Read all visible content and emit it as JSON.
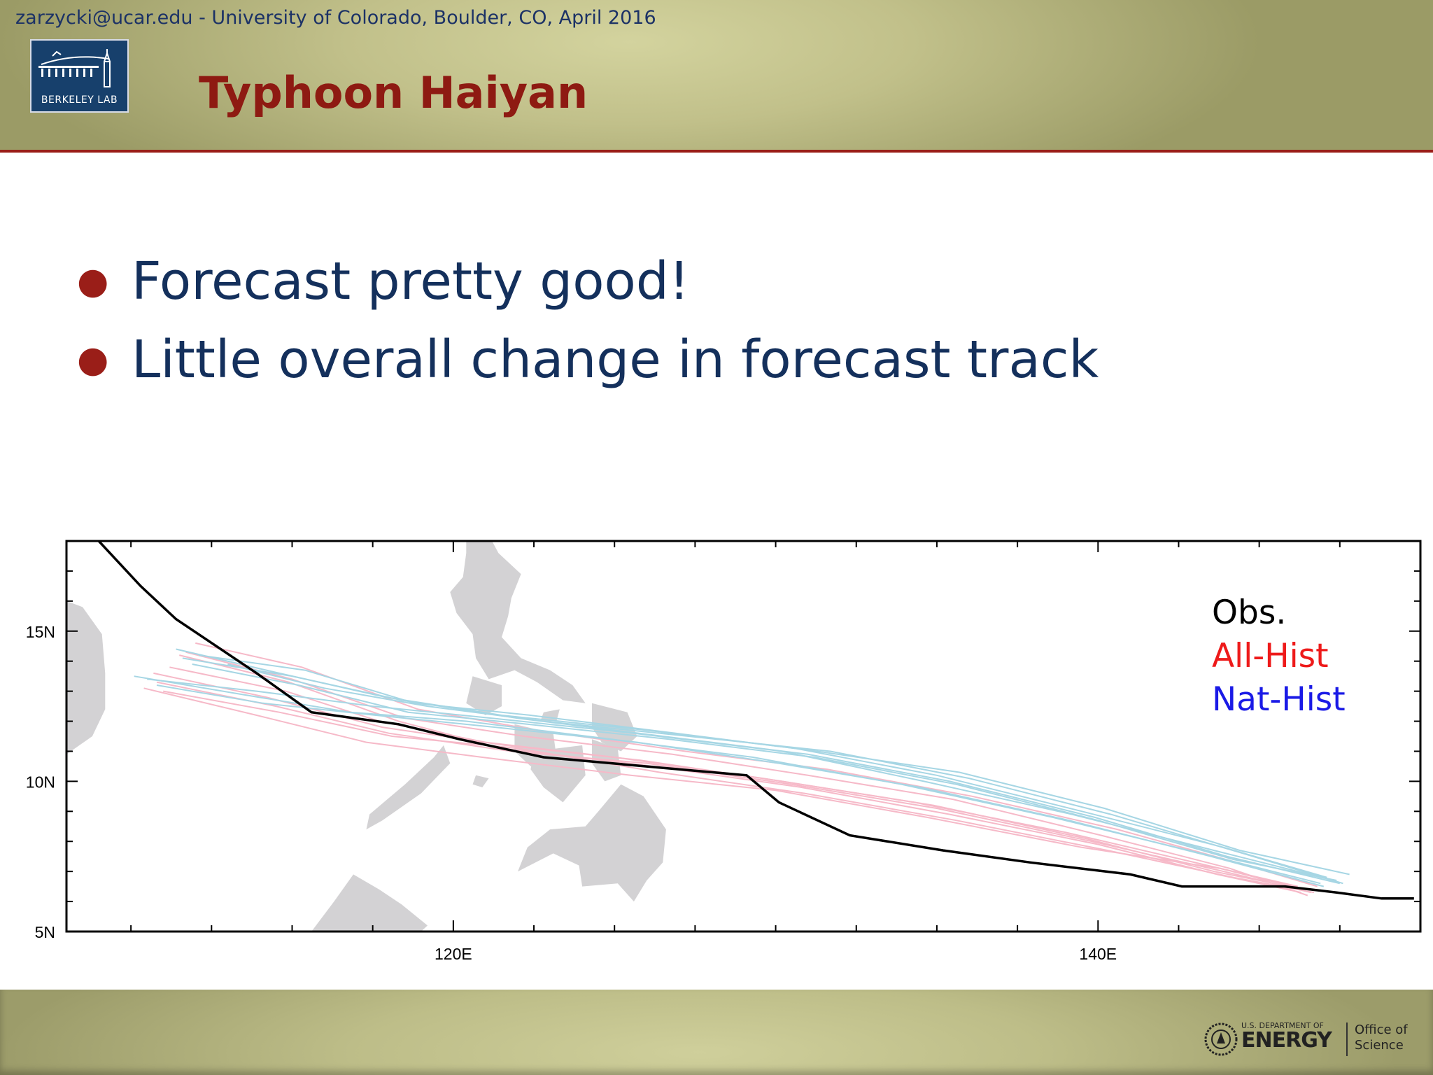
{
  "header": {
    "meta": "zarzycki@ucar.edu - University of Colorado, Boulder, CO, April 2016",
    "title": "Typhoon Haiyan",
    "logo_text": "BERKELEY LAB"
  },
  "bullets": [
    "Forecast pretty good!",
    "Little overall change in forecast track"
  ],
  "map": {
    "lon_range": [
      108,
      150
    ],
    "lat_range": [
      5,
      18
    ],
    "x_ticks": [
      {
        "lon": 120,
        "label": "120E"
      },
      {
        "lon": 140,
        "label": "140E"
      }
    ],
    "y_ticks": [
      {
        "lat": 15,
        "label": "15N"
      },
      {
        "lat": 10,
        "label": "10N"
      },
      {
        "lat": 5,
        "label": "5N"
      }
    ],
    "colors": {
      "land": "#d3d2d4",
      "obs": "#000000",
      "all_hist": "#f6b9c8",
      "nat_hist": "#a6d6e4"
    },
    "obs_track": [
      [
        109,
        18
      ],
      [
        110.3,
        16.5
      ],
      [
        111.4,
        15.4
      ],
      [
        113.9,
        13.6
      ],
      [
        115.6,
        12.3
      ],
      [
        118.3,
        11.9
      ],
      [
        120.2,
        11.4
      ],
      [
        122.8,
        10.8
      ],
      [
        129.1,
        10.2
      ],
      [
        130.1,
        9.3
      ],
      [
        132.3,
        8.2
      ],
      [
        135.2,
        7.7
      ],
      [
        137.9,
        7.3
      ],
      [
        141,
        6.9
      ],
      [
        142.6,
        6.5
      ],
      [
        145.8,
        6.5
      ],
      [
        147.4,
        6.3
      ],
      [
        148.8,
        6.1
      ],
      [
        149.8,
        6.1
      ]
    ],
    "all_hist_tracks": [
      [
        [
          110.4,
          13.1
        ],
        [
          113.9,
          12.2
        ],
        [
          117.3,
          11.3
        ],
        [
          120.9,
          10.8
        ],
        [
          125.5,
          10.2
        ],
        [
          130.0,
          9.7
        ],
        [
          134.7,
          8.8
        ],
        [
          139.5,
          7.8
        ],
        [
          143.8,
          7.1
        ],
        [
          146.4,
          6.4
        ]
      ],
      [
        [
          110.8,
          13.3
        ],
        [
          114.5,
          12.5
        ],
        [
          118.0,
          11.6
        ],
        [
          121.8,
          11.0
        ],
        [
          126.0,
          10.6
        ],
        [
          130.5,
          9.9
        ],
        [
          135.0,
          9.1
        ],
        [
          139.8,
          8.0
        ],
        [
          143.9,
          7.0
        ],
        [
          146.6,
          6.3
        ]
      ],
      [
        [
          111.2,
          13.8
        ],
        [
          114.8,
          13.0
        ],
        [
          117.7,
          12.0
        ],
        [
          121.0,
          11.3
        ],
        [
          125.0,
          10.8
        ],
        [
          129.6,
          10.1
        ],
        [
          134.3,
          9.3
        ],
        [
          139.0,
          8.3
        ],
        [
          143.4,
          7.2
        ],
        [
          146.2,
          6.5
        ]
      ],
      [
        [
          111.7,
          14.3
        ],
        [
          115.0,
          13.4
        ],
        [
          118.5,
          12.1
        ],
        [
          122.2,
          11.5
        ],
        [
          126.8,
          10.9
        ],
        [
          131.0,
          10.2
        ],
        [
          135.5,
          9.4
        ],
        [
          140.1,
          8.2
        ],
        [
          144.1,
          7.1
        ],
        [
          146.5,
          6.2
        ]
      ],
      [
        [
          112.0,
          14.6
        ],
        [
          115.3,
          13.8
        ],
        [
          118.9,
          12.4
        ],
        [
          122.6,
          11.7
        ],
        [
          127.2,
          11.0
        ],
        [
          131.6,
          10.4
        ],
        [
          136.1,
          9.5
        ],
        [
          140.6,
          8.4
        ],
        [
          144.3,
          7.3
        ],
        [
          146.8,
          6.5
        ]
      ],
      [
        [
          111.5,
          14.2
        ],
        [
          114.9,
          13.3
        ],
        [
          118.3,
          12.0
        ],
        [
          121.5,
          11.1
        ],
        [
          126.2,
          10.5
        ],
        [
          130.8,
          9.8
        ],
        [
          135.4,
          8.9
        ],
        [
          140.0,
          7.9
        ],
        [
          143.7,
          6.9
        ],
        [
          146.3,
          6.3
        ]
      ],
      [
        [
          110.7,
          13.6
        ],
        [
          114.2,
          12.8
        ],
        [
          117.8,
          11.8
        ],
        [
          121.6,
          11.2
        ],
        [
          125.8,
          10.7
        ],
        [
          130.2,
          10.0
        ],
        [
          134.9,
          9.2
        ],
        [
          139.6,
          8.1
        ],
        [
          143.6,
          7.0
        ],
        [
          146.4,
          6.4
        ]
      ],
      [
        [
          111.0,
          13.0
        ],
        [
          114.6,
          12.3
        ],
        [
          118.1,
          11.5
        ],
        [
          122.0,
          11.1
        ],
        [
          126.4,
          10.3
        ],
        [
          130.9,
          9.6
        ],
        [
          135.6,
          8.7
        ],
        [
          140.3,
          7.7
        ],
        [
          144.2,
          6.8
        ],
        [
          146.7,
          6.3
        ]
      ]
    ],
    "nat_hist_tracks": [
      [
        [
          110.1,
          13.5
        ],
        [
          113.4,
          12.9
        ],
        [
          116.8,
          12.3
        ],
        [
          120.4,
          12.0
        ],
        [
          124.9,
          11.4
        ],
        [
          129.3,
          10.8
        ],
        [
          133.9,
          9.9
        ],
        [
          138.6,
          8.8
        ],
        [
          143.2,
          7.6
        ],
        [
          146.9,
          6.6
        ]
      ],
      [
        [
          110.5,
          13.4
        ],
        [
          113.9,
          13.0
        ],
        [
          117.5,
          12.5
        ],
        [
          121.2,
          12.1
        ],
        [
          125.6,
          11.6
        ],
        [
          130.2,
          11.0
        ],
        [
          134.6,
          10.0
        ],
        [
          139.2,
          8.9
        ],
        [
          143.6,
          7.7
        ],
        [
          147.3,
          6.7
        ]
      ],
      [
        [
          111.4,
          14.4
        ],
        [
          114.6,
          13.6
        ],
        [
          117.9,
          12.8
        ],
        [
          121.5,
          12.2
        ],
        [
          126.0,
          11.7
        ],
        [
          130.6,
          11.1
        ],
        [
          135.0,
          10.2
        ],
        [
          139.5,
          9.0
        ],
        [
          143.9,
          7.8
        ],
        [
          147.1,
          6.8
        ]
      ],
      [
        [
          111.6,
          14.1
        ],
        [
          115.0,
          13.5
        ],
        [
          118.4,
          12.7
        ],
        [
          122.0,
          12.1
        ],
        [
          126.5,
          11.5
        ],
        [
          131.0,
          10.9
        ],
        [
          135.4,
          10.0
        ],
        [
          139.9,
          8.8
        ],
        [
          144.0,
          7.5
        ],
        [
          147.5,
          6.6
        ]
      ],
      [
        [
          112.1,
          14.2
        ],
        [
          115.4,
          13.7
        ],
        [
          118.8,
          12.6
        ],
        [
          122.4,
          12.2
        ],
        [
          126.9,
          11.6
        ],
        [
          131.3,
          11.0
        ],
        [
          135.7,
          10.3
        ],
        [
          140.2,
          9.1
        ],
        [
          144.4,
          7.7
        ],
        [
          147.8,
          6.9
        ]
      ],
      [
        [
          110.8,
          13.2
        ],
        [
          114.1,
          12.6
        ],
        [
          117.6,
          12.2
        ],
        [
          121.3,
          11.8
        ],
        [
          125.7,
          11.3
        ],
        [
          130.1,
          10.6
        ],
        [
          134.5,
          9.8
        ],
        [
          139.1,
          8.7
        ],
        [
          143.5,
          7.5
        ],
        [
          147.0,
          6.5
        ]
      ],
      [
        [
          111.9,
          13.9
        ],
        [
          115.2,
          13.2
        ],
        [
          118.6,
          12.3
        ],
        [
          122.3,
          11.9
        ],
        [
          126.7,
          11.4
        ],
        [
          131.2,
          10.8
        ],
        [
          135.6,
          9.9
        ],
        [
          140.0,
          8.7
        ],
        [
          144.2,
          7.4
        ],
        [
          147.4,
          6.7
        ]
      ],
      [
        [
          113.0,
          13.9
        ],
        [
          116.0,
          13.1
        ],
        [
          119.2,
          12.5
        ],
        [
          122.8,
          12.0
        ],
        [
          127.3,
          11.5
        ],
        [
          131.7,
          11.0
        ],
        [
          136.0,
          10.1
        ],
        [
          140.4,
          8.9
        ],
        [
          144.5,
          7.6
        ],
        [
          147.6,
          6.6
        ]
      ]
    ],
    "land": [
      {
        "name": "vietnam-coast",
        "coords": [
          [
            108,
            16.0
          ],
          [
            108.5,
            15.8
          ],
          [
            109.1,
            14.9
          ],
          [
            109.2,
            13.6
          ],
          [
            109.2,
            12.4
          ],
          [
            108.8,
            11.5
          ],
          [
            108,
            10.9
          ]
        ]
      },
      {
        "name": "luzon",
        "coords": [
          [
            120.4,
            18
          ],
          [
            121.2,
            18
          ],
          [
            121.4,
            17.6
          ],
          [
            122.1,
            16.9
          ],
          [
            121.8,
            16.1
          ],
          [
            121.7,
            15.5
          ],
          [
            121.5,
            14.8
          ],
          [
            122.1,
            14.1
          ],
          [
            123.0,
            13.7
          ],
          [
            123.7,
            13.2
          ],
          [
            124.1,
            12.6
          ],
          [
            123.4,
            12.7
          ],
          [
            122.6,
            13.3
          ],
          [
            121.9,
            13.7
          ],
          [
            121.1,
            13.4
          ],
          [
            120.7,
            14.1
          ],
          [
            120.6,
            14.9
          ],
          [
            120.1,
            15.6
          ],
          [
            119.9,
            16.3
          ],
          [
            120.3,
            16.8
          ],
          [
            120.4,
            17.6
          ]
        ]
      },
      {
        "name": "mindoro",
        "coords": [
          [
            120.6,
            13.5
          ],
          [
            121.5,
            13.2
          ],
          [
            121.5,
            12.5
          ],
          [
            121.0,
            12.2
          ],
          [
            120.4,
            12.6
          ]
        ]
      },
      {
        "name": "samar",
        "coords": [
          [
            124.3,
            12.6
          ],
          [
            125.4,
            12.3
          ],
          [
            125.7,
            11.5
          ],
          [
            125.2,
            11.0
          ],
          [
            124.6,
            11.3
          ],
          [
            124.3,
            11.8
          ]
        ]
      },
      {
        "name": "leyte",
        "coords": [
          [
            124.3,
            11.4
          ],
          [
            125.1,
            11.1
          ],
          [
            125.2,
            10.2
          ],
          [
            124.7,
            10.0
          ],
          [
            124.3,
            10.6
          ]
        ]
      },
      {
        "name": "panay",
        "coords": [
          [
            121.9,
            11.9
          ],
          [
            123.1,
            11.6
          ],
          [
            123.2,
            10.8
          ],
          [
            122.4,
            10.5
          ],
          [
            121.9,
            11.0
          ]
        ]
      },
      {
        "name": "negros-cebu",
        "coords": [
          [
            122.5,
            11.0
          ],
          [
            124.0,
            11.2
          ],
          [
            124.1,
            10.2
          ],
          [
            123.4,
            9.3
          ],
          [
            122.8,
            9.8
          ],
          [
            122.4,
            10.4
          ]
        ]
      },
      {
        "name": "palawan",
        "coords": [
          [
            119.7,
            11.2
          ],
          [
            119.9,
            10.6
          ],
          [
            119.0,
            9.6
          ],
          [
            117.8,
            8.7
          ],
          [
            117.3,
            8.4
          ],
          [
            117.4,
            8.9
          ],
          [
            118.5,
            9.9
          ],
          [
            119.4,
            10.8
          ]
        ]
      },
      {
        "name": "mindanao",
        "coords": [
          [
            125.2,
            9.9
          ],
          [
            125.9,
            9.5
          ],
          [
            126.6,
            8.4
          ],
          [
            126.5,
            7.3
          ],
          [
            126.0,
            6.7
          ],
          [
            125.6,
            6.0
          ],
          [
            125.1,
            6.6
          ],
          [
            124.0,
            6.5
          ],
          [
            123.9,
            7.2
          ],
          [
            123.1,
            7.6
          ],
          [
            122.0,
            7.0
          ],
          [
            122.3,
            7.8
          ],
          [
            123.0,
            8.4
          ],
          [
            124.1,
            8.5
          ],
          [
            124.5,
            9.0
          ]
        ]
      },
      {
        "name": "borneo",
        "coords": [
          [
            115.6,
            5.0
          ],
          [
            116.3,
            6.0
          ],
          [
            116.9,
            6.9
          ],
          [
            117.7,
            6.4
          ],
          [
            118.4,
            5.9
          ],
          [
            119.2,
            5.2
          ],
          [
            119.0,
            5.0
          ]
        ]
      },
      {
        "name": "islet-1",
        "coords": [
          [
            120.7,
            10.2
          ],
          [
            121.1,
            10.1
          ],
          [
            120.9,
            9.8
          ],
          [
            120.6,
            9.9
          ]
        ]
      },
      {
        "name": "islet-2",
        "coords": [
          [
            122.8,
            12.3
          ],
          [
            123.3,
            12.4
          ],
          [
            123.2,
            12.0
          ],
          [
            122.7,
            12.0
          ]
        ]
      }
    ]
  },
  "legend": [
    {
      "label": "Obs.",
      "color": "#000000"
    },
    {
      "label": "All-Hist",
      "color": "#ee1a1a"
    },
    {
      "label": "Nat-Hist",
      "color": "#1a1ae6"
    }
  ],
  "footer": {
    "doe_small": "U.S. DEPARTMENT OF",
    "doe_big": "ENERGY",
    "office_line1": "Office of",
    "office_line2": "Science"
  }
}
